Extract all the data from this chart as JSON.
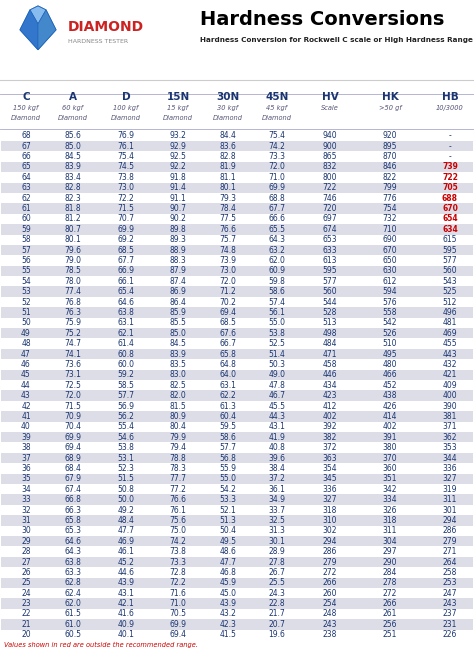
{
  "title": "Hardness Conversions",
  "subtitle": "Hardness Conversion for Rockwell C scale or High Hardness Range",
  "headers": [
    "C",
    "A",
    "D",
    "15N",
    "30N",
    "45N",
    "HV",
    "HK",
    "HB"
  ],
  "subheaders": [
    "150 kgf\nDiamond",
    "60 kgf\nDiamond",
    "100 kgf\nDiamond",
    "15 kgf\nDiamond",
    "30 kgf\nDiamond",
    "45 kgf\nDiamond",
    "Scale",
    ">50 gf",
    "10/3000"
  ],
  "footer": "Values shown in red are outside the recommended range.",
  "rows": [
    [
      68,
      85.6,
      76.9,
      93.2,
      84.4,
      75.4,
      940,
      920,
      "-"
    ],
    [
      67,
      85.0,
      76.1,
      92.9,
      83.6,
      74.2,
      900,
      895,
      "-"
    ],
    [
      66,
      84.5,
      75.4,
      92.5,
      82.8,
      73.3,
      865,
      870,
      "-"
    ],
    [
      65,
      83.9,
      74.5,
      92.2,
      81.9,
      72.0,
      832,
      846,
      "739"
    ],
    [
      64,
      83.4,
      73.8,
      91.8,
      81.1,
      71.0,
      800,
      822,
      "722"
    ],
    [
      63,
      82.8,
      73.0,
      91.4,
      80.1,
      69.9,
      722,
      799,
      "705"
    ],
    [
      62,
      82.3,
      72.2,
      91.1,
      79.3,
      68.8,
      746,
      776,
      "688"
    ],
    [
      61,
      81.8,
      71.5,
      90.7,
      78.4,
      67.7,
      720,
      754,
      "670"
    ],
    [
      60,
      81.2,
      70.7,
      90.2,
      77.5,
      66.6,
      697,
      732,
      "654"
    ],
    [
      59,
      80.7,
      69.9,
      89.8,
      76.6,
      65.5,
      674,
      710,
      "634"
    ],
    [
      58,
      80.1,
      69.2,
      89.3,
      75.7,
      64.3,
      653,
      690,
      615
    ],
    [
      57,
      79.6,
      68.5,
      88.9,
      74.8,
      63.2,
      633,
      670,
      595
    ],
    [
      56,
      79.0,
      67.7,
      88.3,
      73.9,
      62.0,
      613,
      650,
      577
    ],
    [
      55,
      78.5,
      66.9,
      87.9,
      73.0,
      60.9,
      595,
      630,
      560
    ],
    [
      54,
      78.0,
      66.1,
      87.4,
      72.0,
      59.8,
      577,
      612,
      543
    ],
    [
      53,
      77.4,
      65.4,
      86.9,
      71.2,
      58.6,
      560,
      594,
      525
    ],
    [
      52,
      76.8,
      64.6,
      86.4,
      70.2,
      57.4,
      544,
      576,
      512
    ],
    [
      51,
      76.3,
      63.8,
      85.9,
      69.4,
      56.1,
      528,
      558,
      496
    ],
    [
      50,
      75.9,
      63.1,
      85.5,
      68.5,
      55.0,
      513,
      542,
      481
    ],
    [
      49,
      75.2,
      62.1,
      85.0,
      67.6,
      53.8,
      498,
      526,
      469
    ],
    [
      48,
      74.7,
      61.4,
      84.5,
      66.7,
      52.5,
      484,
      510,
      455
    ],
    [
      47,
      74.1,
      60.8,
      83.9,
      65.8,
      51.4,
      471,
      495,
      443
    ],
    [
      46,
      73.6,
      60.0,
      83.5,
      64.8,
      50.3,
      458,
      480,
      432
    ],
    [
      45,
      73.1,
      59.2,
      83.0,
      64.0,
      49.0,
      446,
      466,
      421
    ],
    [
      44,
      72.5,
      58.5,
      82.5,
      63.1,
      47.8,
      434,
      452,
      409
    ],
    [
      43,
      72.0,
      57.7,
      82.0,
      62.2,
      46.7,
      423,
      438,
      400
    ],
    [
      42,
      71.5,
      56.9,
      81.5,
      61.3,
      45.5,
      412,
      426,
      390
    ],
    [
      41,
      70.9,
      56.2,
      80.9,
      60.4,
      44.3,
      402,
      414,
      381
    ],
    [
      40,
      70.4,
      55.4,
      80.4,
      59.5,
      43.1,
      392,
      402,
      371
    ],
    [
      39,
      69.9,
      54.6,
      79.9,
      58.6,
      41.9,
      382,
      391,
      362
    ],
    [
      38,
      69.4,
      53.8,
      79.4,
      57.7,
      40.8,
      372,
      380,
      353
    ],
    [
      37,
      68.9,
      53.1,
      78.8,
      56.8,
      39.6,
      363,
      370,
      344
    ],
    [
      36,
      68.4,
      52.3,
      78.3,
      55.9,
      38.4,
      354,
      360,
      336
    ],
    [
      35,
      67.9,
      51.5,
      77.7,
      55.0,
      37.2,
      345,
      351,
      327
    ],
    [
      34,
      67.4,
      50.8,
      77.2,
      54.2,
      36.1,
      336,
      342,
      319
    ],
    [
      33,
      66.8,
      50.0,
      76.6,
      53.3,
      34.9,
      327,
      334,
      311
    ],
    [
      32,
      66.3,
      49.2,
      76.1,
      52.1,
      33.7,
      318,
      326,
      301
    ],
    [
      31,
      65.8,
      48.4,
      75.6,
      51.3,
      32.5,
      310,
      318,
      294
    ],
    [
      30,
      65.3,
      47.7,
      75.0,
      50.4,
      31.3,
      302,
      311,
      286
    ],
    [
      29,
      64.6,
      46.9,
      74.2,
      49.5,
      30.1,
      294,
      304,
      279
    ],
    [
      28,
      64.3,
      46.1,
      73.8,
      48.6,
      28.9,
      286,
      297,
      271
    ],
    [
      27,
      63.8,
      45.2,
      73.3,
      47.7,
      27.8,
      279,
      290,
      264
    ],
    [
      26,
      63.3,
      44.6,
      72.8,
      46.8,
      26.7,
      272,
      284,
      258
    ],
    [
      25,
      62.8,
      43.9,
      72.2,
      45.9,
      25.5,
      266,
      278,
      253
    ],
    [
      24,
      62.4,
      43.1,
      71.6,
      45.0,
      24.3,
      260,
      272,
      247
    ],
    [
      23,
      62.0,
      42.1,
      71.0,
      43.9,
      22.8,
      254,
      266,
      243
    ],
    [
      22,
      61.5,
      41.6,
      70.5,
      43.2,
      21.7,
      248,
      261,
      237
    ],
    [
      21,
      61.0,
      40.9,
      69.9,
      42.3,
      20.7,
      243,
      256,
      231
    ],
    [
      20,
      60.5,
      40.1,
      69.4,
      41.5,
      19.6,
      238,
      251,
      226
    ]
  ],
  "red_hb_row_indices": [
    3,
    4,
    5,
    6,
    7,
    8,
    9
  ],
  "gray_row_indices": [
    1,
    3,
    5,
    7,
    9,
    11,
    13,
    15,
    17,
    19,
    21,
    23,
    25,
    27,
    29,
    31,
    33,
    35,
    37,
    39,
    41,
    43,
    45,
    47
  ],
  "red_color": "#cc0000",
  "gray_bg": "#dddde8",
  "header_color": "#1a3570",
  "text_color": "#1a3570",
  "logo_red": "#cc2222",
  "logo_blue": "#2266bb"
}
